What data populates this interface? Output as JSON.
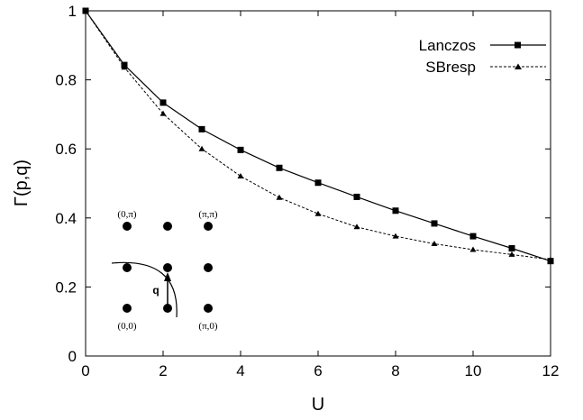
{
  "chart_data": {
    "type": "line",
    "title": "",
    "xlabel": "U",
    "ylabel": "Γ(p,q)",
    "xlim": [
      0,
      12
    ],
    "ylim": [
      0,
      1
    ],
    "x_ticks": [
      "0",
      "2",
      "4",
      "6",
      "8",
      "10",
      "12"
    ],
    "y_ticks": [
      "0",
      "0.2",
      "0.4",
      "0.6",
      "0.8",
      "1"
    ],
    "grid": false,
    "legend_position": "top-right",
    "series": [
      {
        "name": "Lanczos",
        "marker": "square",
        "line": "solid",
        "x": [
          0,
          1,
          2,
          3,
          4,
          5,
          6,
          7,
          8,
          9,
          10,
          11,
          12
        ],
        "y": [
          1.0,
          0.843,
          0.734,
          0.657,
          0.597,
          0.545,
          0.502,
          0.461,
          0.421,
          0.384,
          0.347,
          0.312,
          0.275
        ]
      },
      {
        "name": "SBresp",
        "marker": "triangle",
        "line": "dashed",
        "x": [
          0,
          1,
          2,
          3,
          4,
          5,
          6,
          7,
          8,
          9,
          10,
          11,
          12
        ],
        "y": [
          1.0,
          0.836,
          0.702,
          0.6,
          0.521,
          0.459,
          0.412,
          0.374,
          0.347,
          0.325,
          0.308,
          0.294,
          0.279
        ]
      }
    ],
    "inset": {
      "corner_labels": [
        "(0,π)",
        "(π,π)",
        "(0,0)",
        "(π,0)"
      ],
      "vector_label": "q"
    }
  }
}
